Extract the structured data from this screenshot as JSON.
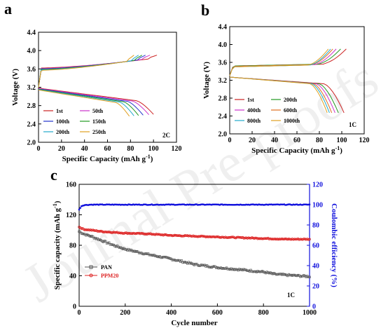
{
  "watermark": "Journal Pre-proofs",
  "chart_data": [
    {
      "panel": "a",
      "type": "line",
      "xlabel": "Specific Capacity (mAh g",
      "xlabel_sup": "-1",
      "xlabel_end": ")",
      "ylabel": "Voltage (V)",
      "xlim": [
        0,
        120
      ],
      "ylim": [
        2.0,
        4.4
      ],
      "xticks": [
        0,
        20,
        40,
        60,
        80,
        100,
        120
      ],
      "yticks": [
        2.0,
        2.4,
        2.8,
        3.2,
        3.6,
        4.0,
        4.4
      ],
      "rate_label": "2C",
      "legend_position": "bottom-left",
      "series": [
        {
          "name": "1st",
          "color": "#cc2222",
          "charge_cap": 103,
          "discharge_cap": 100,
          "charge_start": 3.62
        },
        {
          "name": "50th",
          "color": "#cc33cc",
          "charge_cap": 97,
          "discharge_cap": 96,
          "charge_start": 3.61
        },
        {
          "name": "100th",
          "color": "#2233cc",
          "charge_cap": 93,
          "discharge_cap": 91,
          "charge_start": 3.6
        },
        {
          "name": "150th",
          "color": "#229922",
          "charge_cap": 90,
          "discharge_cap": 87,
          "charge_start": 3.59
        },
        {
          "name": "200th",
          "color": "#22aacc",
          "charge_cap": 87,
          "discharge_cap": 83,
          "charge_start": 3.58
        },
        {
          "name": "250th",
          "color": "#e0a020",
          "charge_cap": 83,
          "discharge_cap": 79,
          "charge_start": 3.57
        }
      ]
    },
    {
      "panel": "b",
      "type": "line",
      "xlabel": "Specific Capacity (mAh g",
      "xlabel_sup": "-1",
      "xlabel_end": ")",
      "ylabel": "Voltage (V)",
      "xlim": [
        0,
        120
      ],
      "ylim": [
        2.0,
        4.4
      ],
      "xticks": [
        0,
        20,
        40,
        60,
        80,
        100,
        120
      ],
      "yticks": [
        2.0,
        2.4,
        2.8,
        3.2,
        3.6,
        4.0,
        4.4
      ],
      "rate_label": "1C",
      "legend_position": "bottom-left",
      "series": [
        {
          "name": "1st",
          "color": "#cc2222",
          "charge_cap": 104,
          "discharge_cap": 102,
          "charge_start": 3.52
        },
        {
          "name": "200th",
          "color": "#229922",
          "charge_cap": 99,
          "discharge_cap": 97,
          "charge_start": 3.52
        },
        {
          "name": "400th",
          "color": "#cc33cc",
          "charge_cap": 95,
          "discharge_cap": 94,
          "charge_start": 3.51
        },
        {
          "name": "600th",
          "color": "#e07020",
          "charge_cap": 92,
          "discharge_cap": 91,
          "charge_start": 3.51
        },
        {
          "name": "800th",
          "color": "#22aacc",
          "charge_cap": 90,
          "discharge_cap": 89,
          "charge_start": 3.5
        },
        {
          "name": "1000th",
          "color": "#e0a020",
          "charge_cap": 88,
          "discharge_cap": 87,
          "charge_start": 3.5
        }
      ]
    },
    {
      "panel": "c",
      "type": "scatter",
      "xlabel": "Cycle number",
      "ylabel": "Specific capacity (mAh g",
      "ylabel_sup": "-1",
      "ylabel_end": ")",
      "y2label": "Coulombic efficiency (%)",
      "xlim": [
        0,
        1000
      ],
      "ylim": [
        0,
        160
      ],
      "y2lim": [
        0,
        120
      ],
      "xticks": [
        0,
        200,
        400,
        600,
        800,
        1000
      ],
      "yticks": [
        0,
        40,
        80,
        120,
        160
      ],
      "y2ticks": [
        0,
        20,
        40,
        60,
        80,
        100,
        120
      ],
      "rate_label": "1C",
      "legend_position": "lower-left",
      "series": [
        {
          "name": "PAN",
          "color": "#555555",
          "axis": "left",
          "x": [
            0,
            20,
            50,
            100,
            150,
            200,
            300,
            400,
            500,
            600,
            700,
            800,
            850,
            900,
            950,
            1000
          ],
          "y": [
            98,
            95,
            92,
            86,
            80,
            75,
            68,
            62,
            55,
            51,
            48,
            45,
            42,
            41,
            40,
            39
          ]
        },
        {
          "name": "PPM20",
          "color": "#dd2222",
          "axis": "left",
          "x": [
            0,
            20,
            50,
            100,
            200,
            300,
            400,
            500,
            600,
            700,
            800,
            900,
            1000
          ],
          "y": [
            104,
            101,
            100,
            98,
            96,
            95,
            93,
            92,
            91,
            90,
            89,
            88,
            88
          ]
        },
        {
          "name": "Coulombic efficiency",
          "color": "#1111dd",
          "axis": "right",
          "x": [
            0,
            5,
            10,
            20,
            50,
            100,
            1000
          ],
          "y": [
            95,
            97,
            98.5,
            99.5,
            100,
            100,
            100
          ]
        }
      ]
    }
  ]
}
